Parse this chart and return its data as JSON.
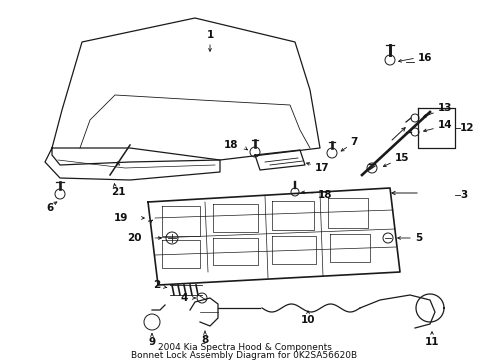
{
  "background_color": "#ffffff",
  "line_color": "#1a1a1a",
  "title_line1": "2004 Kia Spectra Hood & Components",
  "title_line2": "Bonnet Lock Assembly Diagram for 0K2SA56620B",
  "title_fontsize": 6.5,
  "fig_width": 4.89,
  "fig_height": 3.6,
  "dpi": 100
}
